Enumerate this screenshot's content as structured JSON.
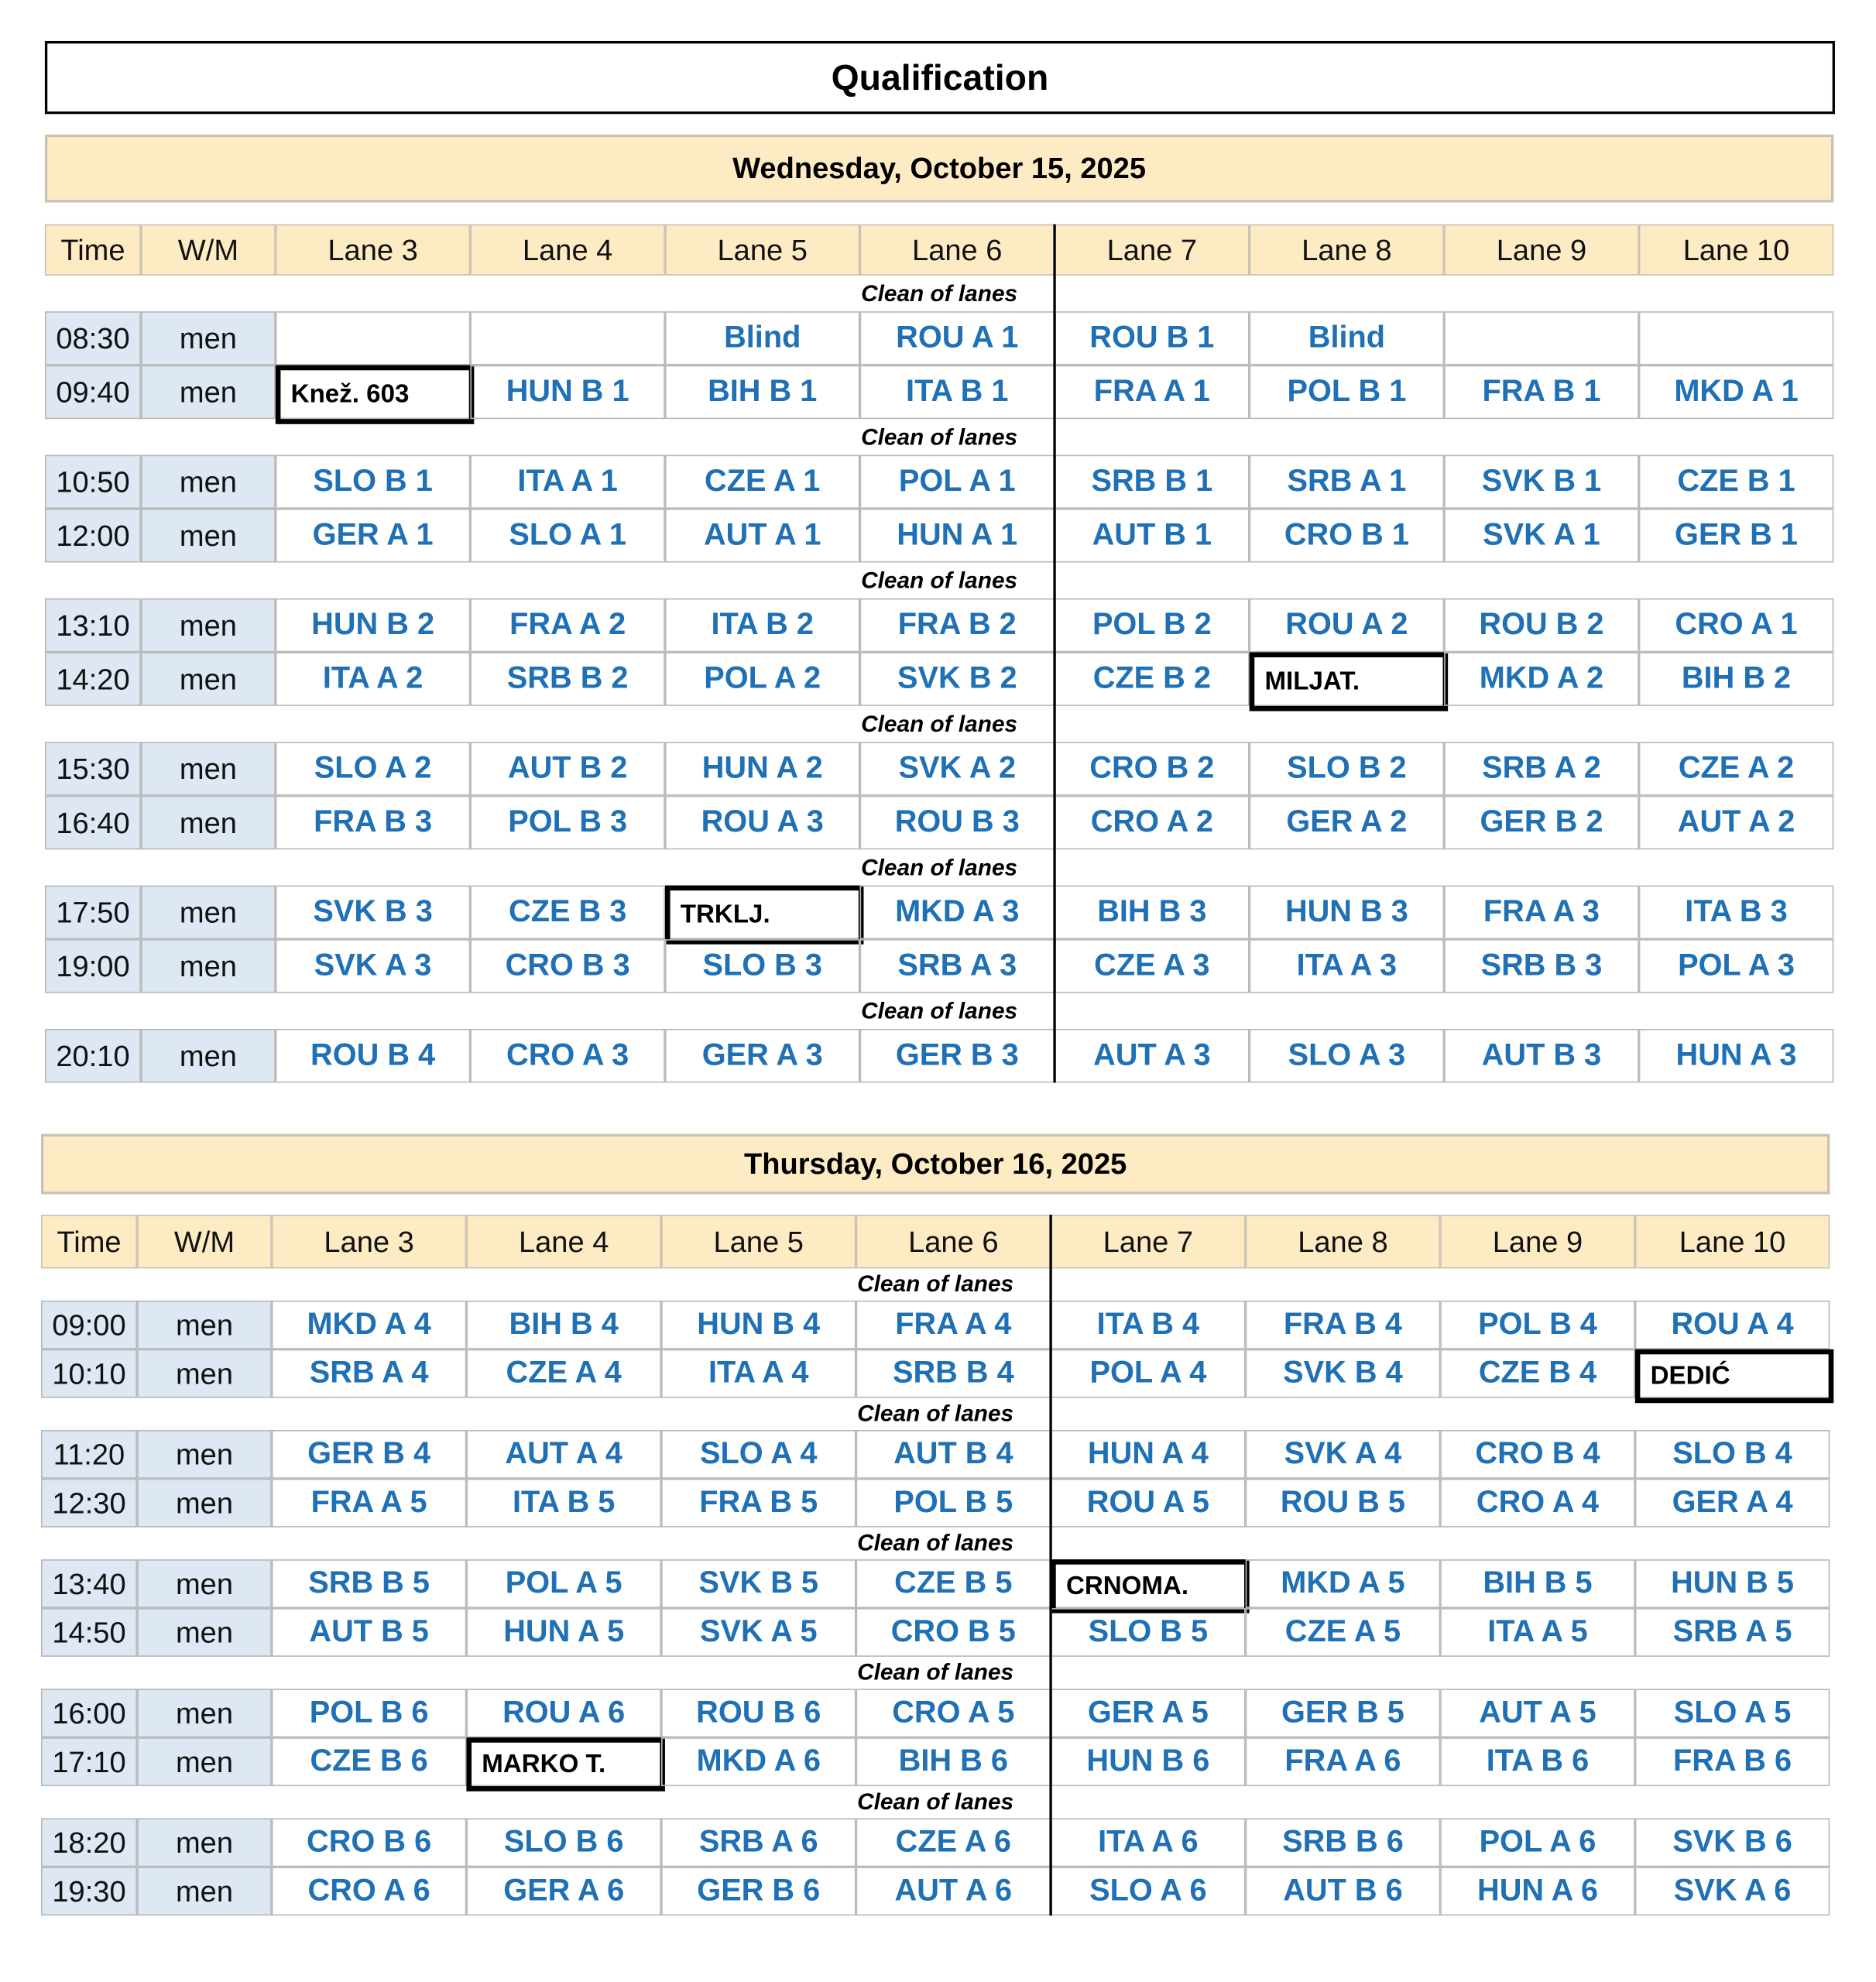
{
  "title": "Qualification",
  "days": [
    {
      "date": "Wednesday, October 15, 2025",
      "columns": [
        "Time",
        "W/M",
        "Lane 3",
        "Lane 4",
        "Lane 5",
        "Lane 6",
        "Lane 7",
        "Lane 8",
        "Lane 9",
        "Lane 10"
      ],
      "sections": [
        {
          "note": "Clean of lanes",
          "rows": [
            {
              "time": "08:30",
              "category": "men",
              "lanes": [
                null,
                null,
                "Blind",
                "ROU A 1",
                "ROU B 1",
                "Blind",
                null,
                null
              ]
            },
            {
              "time": "09:40",
              "category": "men",
              "lanes": [
                {
                  "text": "Knež. 603",
                  "style": "boxed"
                },
                "HUN B 1",
                "BIH B 1",
                "ITA B 1",
                "FRA A 1",
                "POL B 1",
                "FRA B 1",
                "MKD A 1"
              ]
            }
          ]
        },
        {
          "note": "Clean of lanes",
          "rows": [
            {
              "time": "10:50",
              "category": "men",
              "lanes": [
                "SLO B 1",
                "ITA A 1",
                "CZE A 1",
                "POL A 1",
                "SRB B 1",
                "SRB A 1",
                "SVK B 1",
                "CZE B 1"
              ]
            },
            {
              "time": "12:00",
              "category": "men",
              "lanes": [
                "GER A 1",
                "SLO A 1",
                "AUT A 1",
                "HUN A 1",
                "AUT B 1",
                "CRO B 1",
                "SVK A 1",
                "GER B 1"
              ]
            }
          ]
        },
        {
          "note": "Clean of lanes",
          "rows": [
            {
              "time": "13:10",
              "category": "men",
              "lanes": [
                "HUN B 2",
                "FRA A 2",
                "ITA B 2",
                "FRA B 2",
                "POL B 2",
                "ROU A 2",
                "ROU B 2",
                "CRO A 1"
              ]
            },
            {
              "time": "14:20",
              "category": "men",
              "lanes": [
                "ITA A 2",
                "SRB B 2",
                "POL A 2",
                "SVK B 2",
                "CZE B 2",
                {
                  "text": "MILJAT.",
                  "style": "boxed"
                },
                "MKD A 2",
                "BIH B 2"
              ]
            }
          ]
        },
        {
          "note": "Clean of lanes",
          "rows": [
            {
              "time": "15:30",
              "category": "men",
              "lanes": [
                "SLO A 2",
                "AUT B 2",
                "HUN A 2",
                "SVK A 2",
                "CRO B 2",
                "SLO B 2",
                "SRB A 2",
                "CZE A 2"
              ]
            },
            {
              "time": "16:40",
              "category": "men",
              "lanes": [
                "FRA B 3",
                "POL B 3",
                "ROU A 3",
                "ROU B 3",
                "CRO A 2",
                "GER A 2",
                "GER B 2",
                "AUT A 2"
              ]
            }
          ]
        },
        {
          "note": "Clean of lanes",
          "rows": [
            {
              "time": "17:50",
              "category": "men",
              "lanes": [
                "SVK B 3",
                "CZE B 3",
                {
                  "text": "TRKLJ.",
                  "style": "boxed"
                },
                "MKD A 3",
                "BIH B 3",
                "HUN B 3",
                "FRA A 3",
                "ITA B 3"
              ]
            },
            {
              "time": "19:00",
              "category": "men",
              "lanes": [
                "SVK A 3",
                "CRO B 3",
                "SLO B 3",
                "SRB A 3",
                "CZE A 3",
                "ITA A 3",
                "SRB B 3",
                "POL A 3"
              ]
            }
          ]
        },
        {
          "note": "Clean of lanes",
          "rows": [
            {
              "time": "20:10",
              "category": "men",
              "lanes": [
                "ROU B 4",
                "CRO A 3",
                "GER A 3",
                "GER B 3",
                "AUT A 3",
                "SLO A 3",
                "AUT B 3",
                "HUN A 3"
              ]
            }
          ]
        }
      ]
    },
    {
      "date": "Thursday, October 16, 2025",
      "columns": [
        "Time",
        "W/M",
        "Lane 3",
        "Lane 4",
        "Lane 5",
        "Lane 6",
        "Lane 7",
        "Lane 8",
        "Lane 9",
        "Lane 10"
      ],
      "sections": [
        {
          "note": "Clean of lanes",
          "rows": [
            {
              "time": "09:00",
              "category": "men",
              "lanes": [
                "MKD A 4",
                "BIH B 4",
                "HUN B 4",
                "FRA A 4",
                "ITA B 4",
                "FRA B 4",
                "POL B 4",
                "ROU A 4"
              ]
            },
            {
              "time": "10:10",
              "category": "men",
              "lanes": [
                "SRB A 4",
                "CZE A 4",
                "ITA A 4",
                "SRB B 4",
                "POL A 4",
                "SVK B 4",
                "CZE B 4",
                {
                  "text": "DEDIĆ",
                  "style": "boxed"
                }
              ]
            }
          ]
        },
        {
          "note": "Clean of lanes",
          "rows": [
            {
              "time": "11:20",
              "category": "men",
              "lanes": [
                "GER B 4",
                "AUT A 4",
                "SLO A 4",
                "AUT B 4",
                "HUN A 4",
                "SVK A 4",
                "CRO B 4",
                "SLO B 4"
              ]
            },
            {
              "time": "12:30",
              "category": "men",
              "lanes": [
                "FRA A 5",
                "ITA B 5",
                "FRA B 5",
                "POL B 5",
                "ROU A 5",
                "ROU B 5",
                "CRO A 4",
                "GER A 4"
              ]
            }
          ]
        },
        {
          "note": "Clean of lanes",
          "rows": [
            {
              "time": "13:40",
              "category": "men",
              "lanes": [
                "SRB B 5",
                "POL A 5",
                "SVK B 5",
                "CZE B 5",
                {
                  "text": "CRNOMA.",
                  "style": "boxed"
                },
                "MKD A 5",
                "BIH B 5",
                "HUN B 5"
              ]
            },
            {
              "time": "14:50",
              "category": "men",
              "lanes": [
                "AUT B 5",
                "HUN A 5",
                "SVK A 5",
                "CRO B 5",
                "SLO B 5",
                "CZE A 5",
                "ITA A 5",
                "SRB A 5"
              ]
            }
          ]
        },
        {
          "note": "Clean of lanes",
          "rows": [
            {
              "time": "16:00",
              "category": "men",
              "lanes": [
                "POL B 6",
                "ROU A 6",
                "ROU B 6",
                "CRO A 5",
                "GER A 5",
                "GER B 5",
                "AUT A 5",
                "SLO A 5"
              ]
            },
            {
              "time": "17:10",
              "category": "men",
              "lanes": [
                "CZE B 6",
                {
                  "text": "MARKO T.",
                  "style": "boxed"
                },
                "MKD A 6",
                "BIH B 6",
                "HUN B 6",
                "FRA A 6",
                "ITA B 6",
                "FRA B 6"
              ]
            }
          ]
        },
        {
          "note": "Clean of lanes",
          "rows": [
            {
              "time": "18:20",
              "category": "men",
              "lanes": [
                "CRO B 6",
                "SLO B 6",
                "SRB A 6",
                "CZE A 6",
                "ITA A 6",
                "SRB B 6",
                "POL A 6",
                "SVK B 6"
              ]
            },
            {
              "time": "19:30",
              "category": "men",
              "lanes": [
                "CRO A 6",
                "GER A 6",
                "GER B 6",
                "AUT A 6",
                "SLO A 6",
                "AUT B 6",
                "HUN A 6",
                "SVK A 6"
              ]
            }
          ]
        }
      ]
    }
  ]
}
